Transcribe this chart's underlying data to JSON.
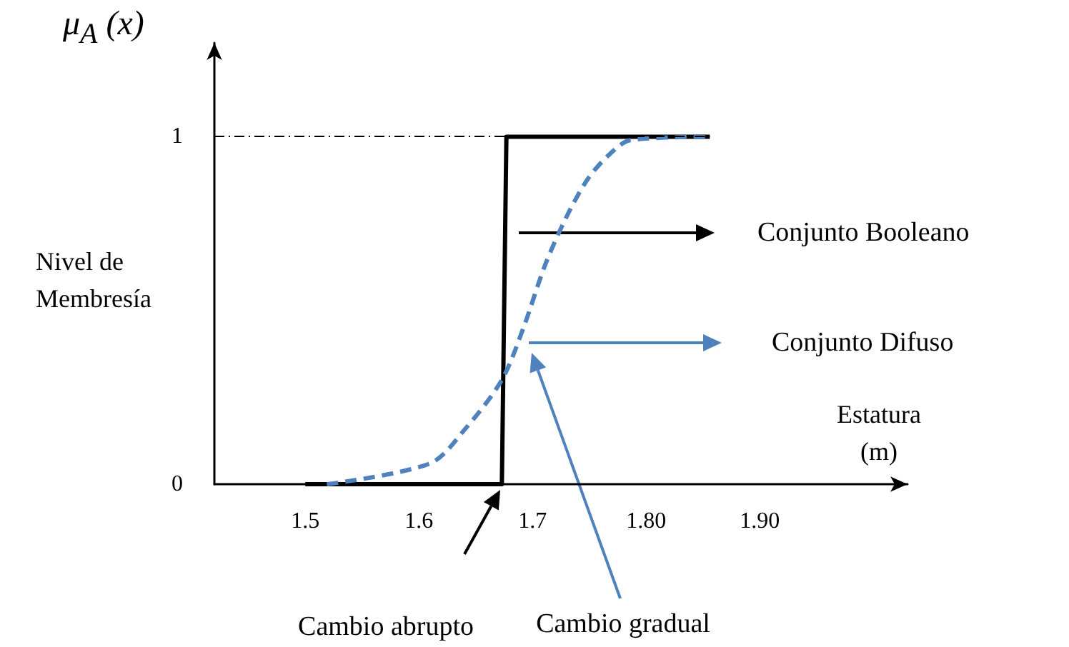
{
  "chart_data": {
    "type": "line",
    "xlabel": "Estatura\n(m)",
    "ylabel": "μ$_{A}$ (x)",
    "xlim": [
      1.42,
      2.03
    ],
    "xticks": [
      1.5,
      1.6,
      1.7,
      {
        "value": 1.8,
        "label": "1.80"
      },
      {
        "value": 1.9,
        "label": "1.90"
      }
    ],
    "ylim": [
      0,
      1.27
    ],
    "yticks": [
      0,
      1
    ],
    "marker": "none",
    "series": [
      {
        "x": [
          1.5,
          1.673,
          1.677,
          1.856
        ],
        "values": [
          0,
          0,
          1,
          1
        ],
        "color": "#000000",
        "line_style": "solid"
      },
      {
        "x": [
          1.519,
          1.61,
          1.641,
          1.673,
          1.692,
          1.711,
          1.73,
          1.749,
          1.768,
          1.786,
          1.856
        ],
        "values": [
          0,
          0.06,
          0.16,
          0.3,
          0.45,
          0.63,
          0.77,
          0.88,
          0.95,
          0.99,
          1
        ],
        "color": "#4f81bd",
        "line_style": "dashed"
      }
    ],
    "ref_lines": [
      {
        "axis": "y",
        "value": 1,
        "line_style": "dashed",
        "color": "#000000"
      }
    ],
    "annotations": [
      "Nivel de\nMembresía",
      "Conjunto Booleano",
      "Conjunto Difuso",
      "Cambio abrupto",
      "Cambio gradual"
    ]
  }
}
